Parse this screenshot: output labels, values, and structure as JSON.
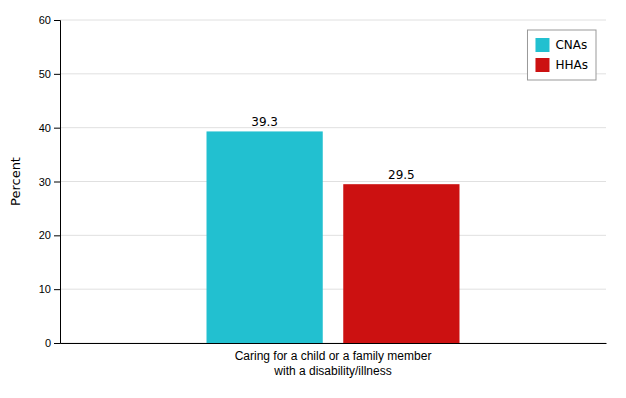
{
  "chart_data": {
    "type": "bar",
    "y_label": "Percent",
    "categories": [
      "Caring for a child or a family member\nwith a disability/illness"
    ],
    "series": [
      {
        "name": "CNAs",
        "color": "#22C0D0",
        "values": [
          39.3
        ]
      },
      {
        "name": "HHAs",
        "color": "#CC1111",
        "values": [
          29.5
        ]
      }
    ],
    "ylim": [
      0,
      60
    ],
    "yticks": [
      0,
      10,
      20,
      30,
      40,
      50,
      60
    ],
    "grid": true,
    "legend": "upper right",
    "data_labels": true
  }
}
